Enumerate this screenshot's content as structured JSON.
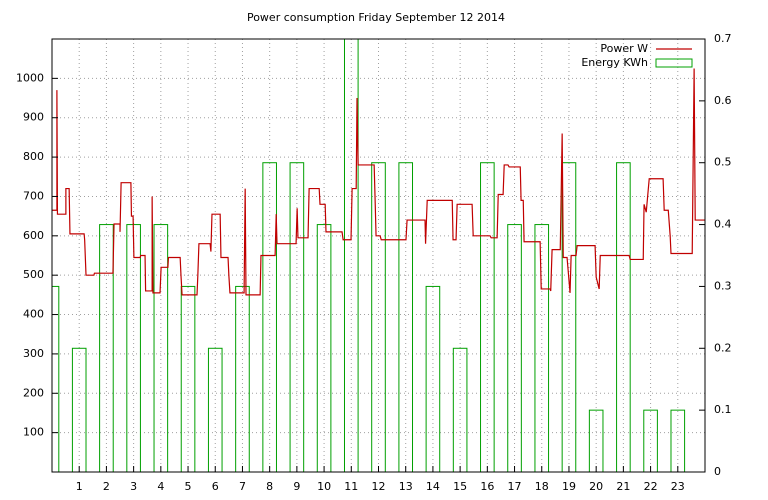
{
  "chart_data": {
    "type": "line",
    "title": "Power consumption Friday September 12 2014",
    "xlim": [
      0,
      24
    ],
    "xticks": [
      1,
      2,
      3,
      4,
      5,
      6,
      7,
      8,
      9,
      10,
      11,
      12,
      13,
      14,
      15,
      16,
      17,
      18,
      19,
      20,
      21,
      22,
      23
    ],
    "ylim": [
      0,
      1100
    ],
    "yticks": [
      100,
      200,
      300,
      400,
      500,
      600,
      700,
      800,
      900,
      1000
    ],
    "y2lim": [
      0,
      0.7
    ],
    "y2ticks": [
      0,
      0.1,
      0.2,
      0.3,
      0.4,
      0.5,
      0.6,
      0.7
    ],
    "grid": true,
    "legend": "top-right",
    "series": [
      {
        "name": "Power W",
        "type": "line",
        "color": "#c00000",
        "x": [
          0,
          0.18,
          0.18,
          0.2,
          0.51,
          0.51,
          0.63,
          0.66,
          1.18,
          1.2,
          1.25,
          1.54,
          1.56,
          2.24,
          2.28,
          2.5,
          2.5,
          2.54,
          2.9,
          2.92,
          2.98,
          3.01,
          3.24,
          3.26,
          3.42,
          3.44,
          3.68,
          3.68,
          3.71,
          3.97,
          4.01,
          4.26,
          4.28,
          4.71,
          4.74,
          4.78,
          5.33,
          5.36,
          5.4,
          5.81,
          5.84,
          5.88,
          6.18,
          6.21,
          6.47,
          6.5,
          6.54,
          7.06,
          7.1,
          7.13,
          7.65,
          7.68,
          8.2,
          8.24,
          8.27,
          8.97,
          9.01,
          9.04,
          9.41,
          9.45,
          9.82,
          9.85,
          10.04,
          10.07,
          10.66,
          10.7,
          10.99,
          11.03,
          11.18,
          11.21,
          11.25,
          11.84,
          11.88,
          11.91,
          12.06,
          12.1,
          13.01,
          13.05,
          13.71,
          13.73,
          13.79,
          14.71,
          14.74,
          14.85,
          14.89,
          15.44,
          15.48,
          16.1,
          16.14,
          16.36,
          16.4,
          16.58,
          16.62,
          16.76,
          16.8,
          17.21,
          17.24,
          17.32,
          17.35,
          17.94,
          17.98,
          18.31,
          18.33,
          18.38,
          18.68,
          18.75,
          18.79,
          18.93,
          19.04,
          19.08,
          19.26,
          19.3,
          19.96,
          20,
          20.11,
          20.15,
          21.21,
          21.25,
          21.73,
          21.76,
          21.84,
          21.95,
          22.46,
          22.5,
          22.65,
          22.72,
          22.75,
          23.53,
          23.6,
          23.64,
          24
        ],
        "values": [
          665,
          665,
          970,
          655,
          655,
          720,
          720,
          605,
          605,
          590,
          500,
          500,
          505,
          505,
          630,
          630,
          610,
          735,
          735,
          650,
          650,
          545,
          545,
          550,
          550,
          460,
          460,
          700,
          455,
          455,
          520,
          520,
          545,
          545,
          500,
          450,
          450,
          500,
          580,
          580,
          560,
          655,
          655,
          545,
          545,
          500,
          455,
          455,
          720,
          450,
          450,
          550,
          550,
          655,
          580,
          580,
          670,
          595,
          595,
          720,
          720,
          680,
          680,
          610,
          610,
          590,
          590,
          720,
          720,
          950,
          780,
          780,
          680,
          600,
          600,
          590,
          590,
          640,
          640,
          580,
          690,
          690,
          590,
          590,
          680,
          680,
          600,
          600,
          595,
          595,
          705,
          705,
          780,
          780,
          775,
          775,
          690,
          690,
          585,
          585,
          465,
          465,
          460,
          565,
          565,
          860,
          545,
          545,
          455,
          550,
          550,
          575,
          575,
          495,
          465,
          550,
          550,
          540,
          540,
          680,
          660,
          745,
          745,
          665,
          665,
          600,
          555,
          555,
          1025,
          640,
          640
        ]
      },
      {
        "name": "Energy KWh",
        "type": "bar",
        "axis": "y2",
        "color": "#00a000",
        "x": [
          0,
          1,
          2,
          3,
          4,
          5,
          6,
          7,
          8,
          9,
          10,
          11,
          12,
          13,
          14,
          15,
          16,
          17,
          18,
          19,
          20,
          21,
          22,
          23
        ],
        "values": [
          0.3,
          0.2,
          0.4,
          0.4,
          0.4,
          0.3,
          0.2,
          0.3,
          0.5,
          0.5,
          0.4,
          0.7,
          0.5,
          0.5,
          0.3,
          0.2,
          0.5,
          0.4,
          0.4,
          0.5,
          0.1,
          0.5,
          0.1,
          0.1
        ]
      }
    ]
  }
}
